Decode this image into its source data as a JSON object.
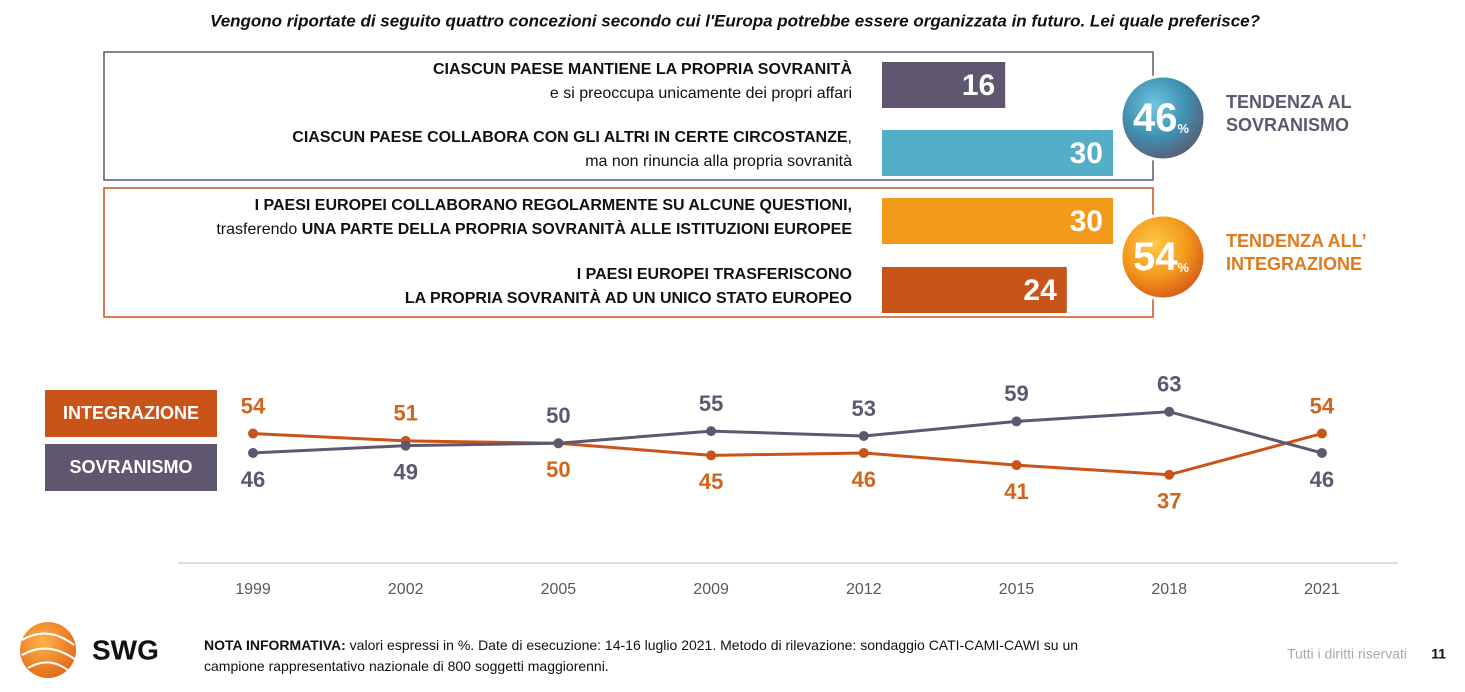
{
  "title": "Vengono riportate di seguito quattro concezioni secondo cui l'Europa potrebbe essere organizzata in futuro. Lei quale preferisce?",
  "chart_data": [
    {
      "type": "bar",
      "orientation": "horizontal",
      "categories": [
        [
          [
            {
              "text": "CIASCUN PAESE MANTIENE LA PROPRIA SOVRANITÀ",
              "bold": true
            }
          ],
          [
            {
              "text": "e si preoccupa unicamente dei propri affari",
              "bold": false
            }
          ]
        ],
        [
          [
            {
              "text": "CIASCUN PAESE COLLABORA CON GLI ALTRI IN CERTE CIRCOSTANZE",
              "bold": true
            },
            {
              "text": ",",
              "bold": false
            }
          ],
          [
            {
              "text": "ma non rinuncia alla propria sovranità",
              "bold": false
            }
          ]
        ],
        [
          [
            {
              "text": "I PAESI EUROPEI COLLABORANO REGOLARMENTE SU ALCUNE QUESTIONI,",
              "bold": true
            }
          ],
          [
            {
              "text": "trasferendo ",
              "bold": false
            },
            {
              "text": "UNA PARTE DELLA PROPRIA SOVRANITÀ ALLE ISTITUZIONI EUROPEE",
              "bold": true
            }
          ]
        ],
        [
          [
            {
              "text": "I PAESI EUROPEI TRASFERISCONO",
              "bold": true
            }
          ],
          [
            {
              "text": "LA PROPRIA SOVRANITÀ AD UN UNICO STATO EUROPEO",
              "bold": true
            }
          ]
        ]
      ],
      "values": [
        16,
        30,
        30,
        24
      ],
      "colors": [
        "#5f5770",
        "#55aec8",
        "#f39a1b",
        "#c9541a"
      ],
      "xlim": [
        0,
        30
      ],
      "groups": [
        {
          "value": 46,
          "unit": "%",
          "label_lines": [
            "TENDENZA AL",
            "SOVRANISMO"
          ],
          "color": "#5f5770"
        },
        {
          "value": 54,
          "unit": "%",
          "label_lines": [
            "TENDENZA ALL’",
            "INTEGRAZIONE"
          ],
          "color": "#e07a1f"
        }
      ]
    },
    {
      "type": "line",
      "categories": [
        "1999",
        "2002",
        "2005",
        "2009",
        "2012",
        "2015",
        "2018",
        "2021"
      ],
      "series": [
        {
          "name": "INTEGRAZIONE",
          "color": "#c9541a",
          "values": [
            54,
            51,
            50,
            45,
            46,
            41,
            37,
            54
          ]
        },
        {
          "name": "SOVRANISMO",
          "color": "#5f5770",
          "values": [
            46,
            49,
            50,
            55,
            53,
            59,
            63,
            46
          ]
        }
      ],
      "ylim": [
        0,
        100
      ]
    }
  ],
  "footer": {
    "note": [
      [
        {
          "text": "NOTA INFORMATIVA:",
          "bold": true
        },
        {
          "text": " valori espressi in %. Date di esecuzione: 14-16 luglio 2021. Metodo di rilevazione: sondaggio CATI-CAMI-CAWI su un",
          "bold": false
        }
      ],
      [
        {
          "text": "campione rappresentativo nazionale di 800 soggetti maggiorenni.",
          "bold": false
        }
      ]
    ],
    "logo": "SWG",
    "rights": "Tutti i diritti riservati",
    "page": "11"
  }
}
